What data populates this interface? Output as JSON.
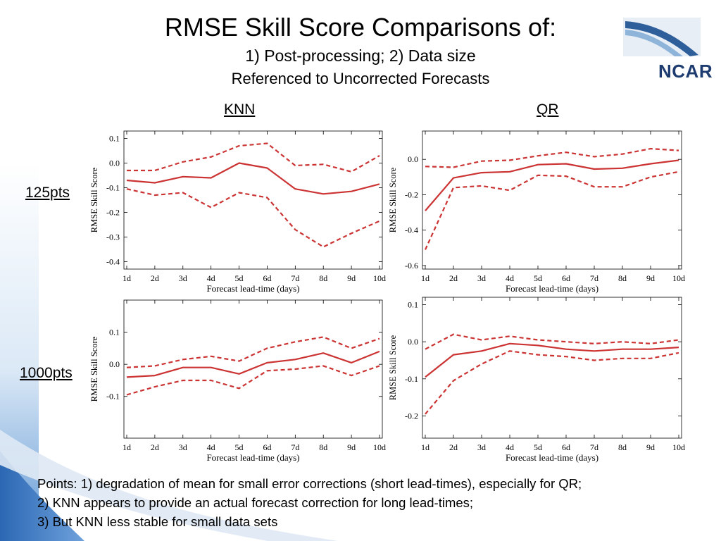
{
  "slide": {
    "title": "RMSE Skill Score Comparisons of:",
    "subtitle1": "1) Post-processing; 2) Data size",
    "subtitle2": "Referenced to Uncorrected Forecasts",
    "col_labels": [
      "KNN",
      "QR"
    ],
    "row_labels": [
      "125pts",
      "1000pts"
    ],
    "logo_text": "NCAR",
    "points": [
      "Points: 1) degradation of mean for small error corrections (short lead-times), especially for QR;",
      "2) KNN appears to provide an actual forecast correction for long lead-times;",
      "3) But KNN less stable for small data sets"
    ],
    "colors": {
      "series": "#cc3333",
      "bg_blue": "#2f6ab0"
    }
  },
  "chart_data": [
    {
      "type": "line",
      "id": "knn-125",
      "xlabel": "Forecast lead-time (days)",
      "ylabel": "RMSE Skill Score",
      "categories": [
        "1d",
        "2d",
        "3d",
        "4d",
        "5d",
        "6d",
        "7d",
        "8d",
        "9d",
        "10d"
      ],
      "ylim": [
        -0.43,
        0.13
      ],
      "yticks": [
        0.1,
        0.0,
        -0.1,
        -0.2,
        -0.3,
        -0.4
      ],
      "yticklabels": [
        "0.1",
        "0.0",
        "-0.1",
        "-0.2",
        "-0.3",
        "-0.4"
      ],
      "series": [
        {
          "style": "solid",
          "values": [
            -0.07,
            -0.08,
            -0.055,
            -0.06,
            0.0,
            -0.02,
            -0.105,
            -0.125,
            -0.115,
            -0.085
          ]
        },
        {
          "style": "dashed",
          "values": [
            -0.03,
            -0.03,
            0.005,
            0.025,
            0.07,
            0.08,
            -0.01,
            -0.005,
            -0.035,
            0.03
          ]
        },
        {
          "style": "dashed",
          "values": [
            -0.105,
            -0.13,
            -0.12,
            -0.18,
            -0.12,
            -0.14,
            -0.27,
            -0.34,
            -0.285,
            -0.235
          ]
        }
      ]
    },
    {
      "type": "line",
      "id": "qr-125",
      "xlabel": "Forecast lead-time (days)",
      "ylabel": "RMSE Skill Score",
      "categories": [
        "1d",
        "2d",
        "3d",
        "4d",
        "5d",
        "6d",
        "7d",
        "8d",
        "9d",
        "10d"
      ],
      "ylim": [
        -0.62,
        0.16
      ],
      "yticks": [
        0.0,
        -0.2,
        -0.4,
        -0.6
      ],
      "yticklabels": [
        "0.0",
        "-0.2",
        "-0.4",
        "-0.6"
      ],
      "series": [
        {
          "style": "solid",
          "values": [
            -0.29,
            -0.105,
            -0.075,
            -0.07,
            -0.03,
            -0.025,
            -0.055,
            -0.05,
            -0.025,
            -0.005
          ]
        },
        {
          "style": "dashed",
          "values": [
            -0.04,
            -0.045,
            -0.01,
            -0.005,
            0.02,
            0.04,
            0.015,
            0.03,
            0.06,
            0.05
          ]
        },
        {
          "style": "dashed",
          "values": [
            -0.51,
            -0.16,
            -0.15,
            -0.175,
            -0.09,
            -0.095,
            -0.155,
            -0.155,
            -0.1,
            -0.07
          ]
        }
      ]
    },
    {
      "type": "line",
      "id": "knn-1000",
      "xlabel": "Forecast lead-time (days)",
      "ylabel": "RMSE Skill Score",
      "categories": [
        "1d",
        "2d",
        "3d",
        "4d",
        "5d",
        "6d",
        "7d",
        "8d",
        "9d",
        "10d"
      ],
      "ylim": [
        -0.23,
        0.2
      ],
      "yticks": [
        0.1,
        0.0,
        -0.1
      ],
      "yticklabels": [
        "0.1",
        "0.0",
        "-0.1"
      ],
      "series": [
        {
          "style": "solid",
          "values": [
            -0.04,
            -0.035,
            -0.01,
            -0.01,
            -0.03,
            0.005,
            0.015,
            0.035,
            0.005,
            0.04
          ]
        },
        {
          "style": "dashed",
          "values": [
            -0.01,
            -0.005,
            0.015,
            0.025,
            0.01,
            0.05,
            0.07,
            0.085,
            0.05,
            0.08
          ]
        },
        {
          "style": "dashed",
          "values": [
            -0.095,
            -0.07,
            -0.05,
            -0.05,
            -0.075,
            -0.02,
            -0.015,
            -0.005,
            -0.035,
            -0.005
          ]
        }
      ]
    },
    {
      "type": "line",
      "id": "qr-1000",
      "xlabel": "Forecast lead-time (days)",
      "ylabel": "RMSE Skill Score",
      "categories": [
        "1d",
        "2d",
        "3d",
        "4d",
        "5d",
        "6d",
        "7d",
        "8d",
        "9d",
        "10d"
      ],
      "ylim": [
        -0.26,
        0.12
      ],
      "yticks": [
        0.1,
        0.0,
        -0.1,
        -0.2
      ],
      "yticklabels": [
        "0.1",
        "0.0",
        "-0.1",
        "-0.2"
      ],
      "series": [
        {
          "style": "solid",
          "values": [
            -0.095,
            -0.035,
            -0.025,
            -0.005,
            -0.01,
            -0.02,
            -0.025,
            -0.02,
            -0.02,
            -0.015
          ]
        },
        {
          "style": "dashed",
          "values": [
            -0.02,
            0.02,
            0.005,
            0.015,
            0.005,
            0.0,
            -0.005,
            0.0,
            -0.005,
            0.005
          ]
        },
        {
          "style": "dashed",
          "values": [
            -0.195,
            -0.105,
            -0.06,
            -0.025,
            -0.035,
            -0.04,
            -0.05,
            -0.045,
            -0.045,
            -0.03
          ]
        }
      ]
    }
  ]
}
